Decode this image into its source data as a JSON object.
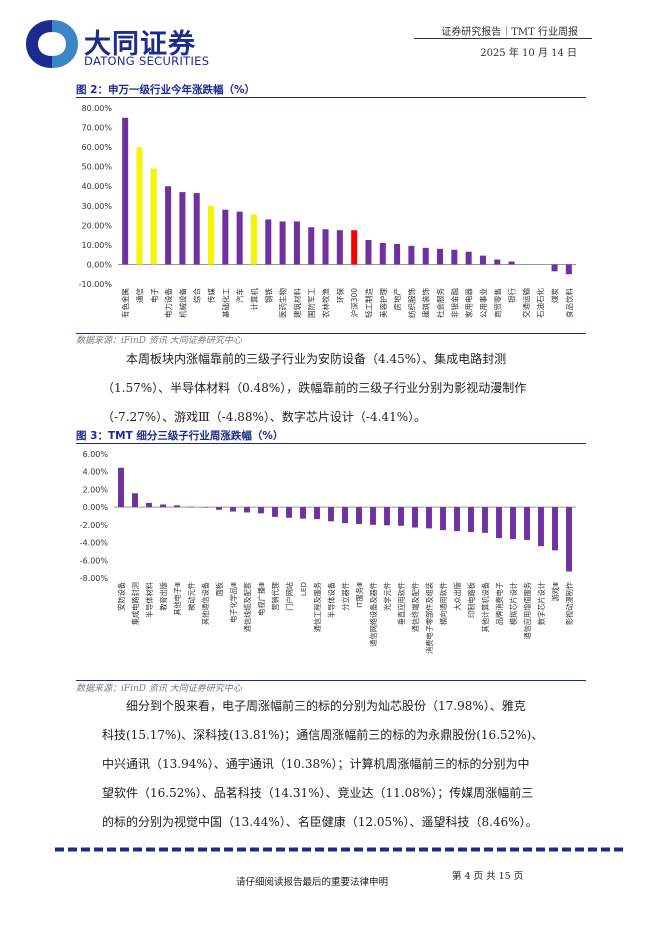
{
  "header": {
    "brand_cn": "大同证券",
    "brand_en": "DATONG SECURITIES",
    "report_type": "证券研究报告｜TMT 行业周报",
    "date": "2025 年 10 月 14 日"
  },
  "figures": [
    {
      "title": "图 2：申万一级行业今年涨跌幅（%）",
      "source": "数据来源：iFinD 资讯  大同证券研究中心"
    },
    {
      "title": "图 3：TMT 细分三级子行业周涨跌幅（%）",
      "source": "数据来源：iFinD 资讯  大同证券研究中心"
    }
  ],
  "paragraphs": [
    {
      "lines": [
        "本周板块内涨幅靠前的三级子行业为安防设备（4.45%）、集成电路封测",
        "（1.57%）、半导体材料（0.48%），跌幅靠前的三级子行业分别为影视动漫制作",
        "（-7.27%）、游戏Ⅲ（-4.88%）、数字芯片设计（-4.41%）。"
      ]
    },
    {
      "lines": [
        "细分到个股来看，电子周涨幅前三的标的分别为灿芯股份（17.98%）、雅克",
        "科技(15.17%)、深科技(13.81%)；通信周涨幅前三的标的为永鼎股份(16.52%)、",
        "中兴通讯（13.94%）、通宇通讯（10.38%）；计算机周涨幅前三的标的分别为中",
        "望软件（16.52%）、品茗科技（14.31%）、竞业达（11.08%）；传媒周涨幅前三",
        "的标的分别为视觉中国（13.44%）、名臣健康（12.05%）、遥望科技（8.46%）。"
      ]
    }
  ],
  "chart_data": [
    {
      "type": "bar",
      "title": "申万一级行业今年涨跌幅（%）",
      "ylim": [
        -10,
        80
      ],
      "yticks": [
        "80.00%",
        "70.00%",
        "60.00%",
        "50.00%",
        "40.00%",
        "30.00%",
        "20.00%",
        "10.00%",
        "0.00%",
        "-10.00%"
      ],
      "categories": [
        "有色金属",
        "通信",
        "电子",
        "电力设备",
        "机械设备",
        "综合",
        "传媒",
        "基础化工",
        "汽车",
        "计算机",
        "钢铁",
        "医药生物",
        "建筑材料",
        "国防军工",
        "农林牧渔",
        "环保",
        "沪深300",
        "轻工制造",
        "美容护理",
        "房地产",
        "纺织服饰",
        "建筑装饰",
        "社会服务",
        "非银金融",
        "家用电器",
        "公用事业",
        "商贸零售",
        "银行",
        "交通运输",
        "石油石化",
        "煤炭",
        "食品饮料"
      ],
      "values": [
        75,
        60,
        49,
        40,
        37,
        36.5,
        30,
        28,
        27,
        25.5,
        23,
        22,
        22,
        19,
        18,
        17.5,
        17.5,
        12.5,
        11,
        10.5,
        9.5,
        8.5,
        8,
        7.5,
        6.5,
        4.5,
        2.5,
        1.5,
        0,
        0,
        -3.5,
        -5
      ],
      "colors": [
        "#7030a0",
        "#f5f500",
        "#f5f500",
        "#7030a0",
        "#7030a0",
        "#7030a0",
        "#f5f500",
        "#7030a0",
        "#7030a0",
        "#f5f500",
        "#7030a0",
        "#7030a0",
        "#7030a0",
        "#7030a0",
        "#7030a0",
        "#7030a0",
        "#ff0000",
        "#7030a0",
        "#7030a0",
        "#7030a0",
        "#7030a0",
        "#7030a0",
        "#7030a0",
        "#7030a0",
        "#7030a0",
        "#7030a0",
        "#7030a0",
        "#7030a0",
        "#7030a0",
        "#7030a0",
        "#7030a0",
        "#7030a0"
      ],
      "xlabel": "",
      "ylabel": ""
    },
    {
      "type": "bar",
      "title": "TMT 细分三级子行业周涨跌幅（%）",
      "ylim": [
        -8,
        6
      ],
      "yticks": [
        "6.00%",
        "4.00%",
        "2.00%",
        "0.00%",
        "-2.00%",
        "-4.00%",
        "-6.00%",
        "-8.00%"
      ],
      "categories": [
        "安防设备",
        "集成电路封测",
        "半导体材料",
        "教育出版",
        "其他电子Ⅲ",
        "被动元件",
        "其他通信设备",
        "面板",
        "电子化学品Ⅲ",
        "通信线缆及配套",
        "电视广播Ⅲ",
        "营销代理",
        "门户网站",
        "LED",
        "通信工程及服务",
        "半导体设备",
        "分立器件",
        "IT服务Ⅲ",
        "通信网络设备及器件",
        "光学元件",
        "垂直应用软件",
        "通信终端及配件",
        "消费电子零部件及组装",
        "横向通用软件",
        "大众出版",
        "印制电路板",
        "其他计算机设备",
        "品牌消费电子",
        "模拟芯片设计",
        "通信应用增值服务",
        "数字芯片设计",
        "游戏Ⅲ",
        "影视动漫制作"
      ],
      "values": [
        4.45,
        1.57,
        0.48,
        0.3,
        0.2,
        0.05,
        -0.05,
        -0.3,
        -0.5,
        -0.6,
        -0.7,
        -1.1,
        -1.2,
        -1.3,
        -1.35,
        -1.6,
        -1.8,
        -1.9,
        -2.0,
        -2.05,
        -2.1,
        -2.3,
        -2.4,
        -2.6,
        -2.7,
        -2.8,
        -2.9,
        -3.5,
        -3.6,
        -3.7,
        -4.41,
        -4.88,
        -7.27
      ],
      "color": "#7030a0",
      "xlabel": "",
      "ylabel": ""
    }
  ],
  "footer": {
    "disclaimer": "请仔细阅读报告最后的重要法律申明",
    "page": "第 4 页 共 15 页"
  },
  "colors": {
    "brand_blue": "#1d2b8f",
    "purple": "#7030a0",
    "yellow": "#f5f500",
    "red": "#ff0000"
  }
}
